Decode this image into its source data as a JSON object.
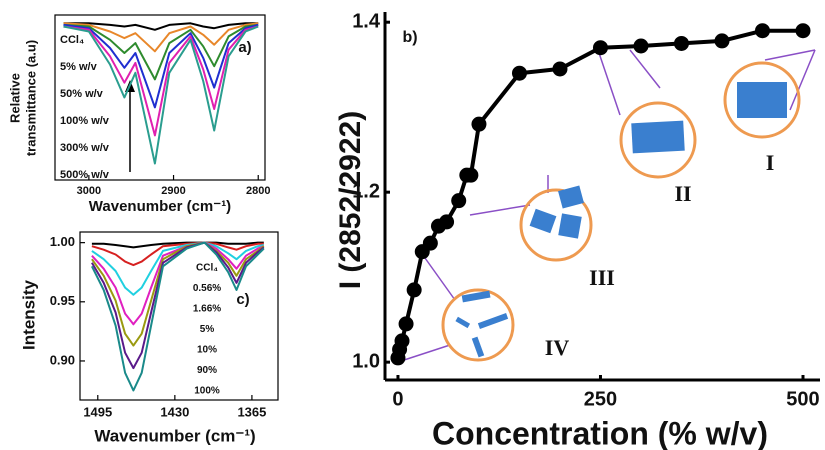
{
  "chart_data": [
    {
      "type": "line",
      "panel_label": "a)",
      "xlabel": "Wavenumber (cm⁻¹)",
      "ylabel": [
        "Relative",
        "transmittance (a.u)"
      ],
      "xlim": [
        3040,
        2792
      ],
      "ylim": [
        0,
        1
      ],
      "xticks": [
        3000,
        2900,
        2800
      ],
      "x": [
        3030,
        3000,
        2975,
        2958,
        2945,
        2922,
        2905,
        2880,
        2865,
        2852,
        2835,
        2815,
        2800
      ],
      "series": [
        {
          "name": "CCl₄",
          "color": "#000000",
          "values": [
            0.95,
            0.95,
            0.94,
            0.93,
            0.94,
            0.91,
            0.94,
            0.95,
            0.93,
            0.92,
            0.94,
            0.95,
            0.95
          ]
        },
        {
          "name": "5% w/v",
          "color": "#e8872a",
          "values": [
            0.95,
            0.94,
            0.9,
            0.86,
            0.89,
            0.78,
            0.89,
            0.93,
            0.88,
            0.82,
            0.91,
            0.94,
            0.95
          ]
        },
        {
          "name": "50% w/v",
          "color": "#2e8b2e",
          "values": [
            0.94,
            0.93,
            0.85,
            0.77,
            0.83,
            0.61,
            0.83,
            0.91,
            0.81,
            0.69,
            0.87,
            0.93,
            0.94
          ]
        },
        {
          "name": "100% w/v",
          "color": "#1f2fd0",
          "values": [
            0.94,
            0.92,
            0.8,
            0.68,
            0.77,
            0.44,
            0.77,
            0.89,
            0.74,
            0.56,
            0.83,
            0.92,
            0.94
          ]
        },
        {
          "name": "300% w/v",
          "color": "#e020b0",
          "values": [
            0.93,
            0.91,
            0.75,
            0.59,
            0.71,
            0.27,
            0.71,
            0.87,
            0.67,
            0.43,
            0.79,
            0.91,
            0.93
          ]
        },
        {
          "name": "500% w/v",
          "color": "#2a9d8f",
          "values": [
            0.93,
            0.9,
            0.7,
            0.5,
            0.65,
            0.1,
            0.65,
            0.85,
            0.6,
            0.3,
            0.75,
            0.9,
            0.93
          ]
        }
      ]
    },
    {
      "type": "line",
      "markers": true,
      "panel_label": "b)",
      "xlabel": "Concentration (% w/v)",
      "ylabel": "I (2852/2922)",
      "xlim": [
        -16,
        521
      ],
      "ylim": [
        0.979,
        1.412
      ],
      "xticks": [
        0,
        250,
        500
      ],
      "yticks": [
        {
          "value": 1.0,
          "label": "1.0"
        },
        {
          "value": 1.2,
          "label": "1.2"
        },
        {
          "value": 1.4,
          "label": "1.4"
        }
      ],
      "color": "#000000",
      "x": [
        0,
        2,
        5,
        10,
        20,
        30,
        40,
        50,
        60,
        75,
        85,
        90,
        100,
        150,
        200,
        250,
        300,
        350,
        400,
        450,
        500
      ],
      "values": [
        1.005,
        1.015,
        1.025,
        1.045,
        1.085,
        1.13,
        1.14,
        1.16,
        1.165,
        1.19,
        1.22,
        1.22,
        1.28,
        1.34,
        1.345,
        1.37,
        1.372,
        1.375,
        1.378,
        1.39,
        1.39
      ],
      "stages": [
        "I",
        "II",
        "III",
        "IV"
      ]
    },
    {
      "type": "line",
      "panel_label": "c)",
      "xlabel": "Wavenumber (cm⁻¹)",
      "ylabel": "Intensity",
      "xlim": [
        1510,
        1343
      ],
      "ylim": [
        0.867,
        1.009
      ],
      "xticks": [
        1495,
        1430,
        1365
      ],
      "yticks": [
        {
          "value": 1.0,
          "label": "1.00"
        },
        {
          "value": 0.95,
          "label": "0.95"
        },
        {
          "value": 0.9,
          "label": "0.90"
        }
      ],
      "x": [
        1500,
        1490,
        1480,
        1472,
        1465,
        1458,
        1450,
        1440,
        1420,
        1405,
        1395,
        1385,
        1378,
        1370,
        1360,
        1355
      ],
      "series": [
        {
          "name": "CCl₄",
          "color": "#000000",
          "values": [
            0.999,
            0.999,
            0.998,
            0.997,
            0.996,
            0.997,
            0.998,
            0.999,
            1,
            1,
            1,
            0.999,
            0.999,
            0.999,
            1,
            1
          ]
        },
        {
          "name": "0.56%",
          "color": "#d62020",
          "values": [
            0.997,
            0.994,
            0.99,
            0.984,
            0.981,
            0.984,
            0.99,
            0.997,
            0.999,
            1,
            0.999,
            0.996,
            0.994,
            0.997,
            0.999,
            0.999
          ]
        },
        {
          "name": "1.66%",
          "color": "#20d0e0",
          "values": [
            0.993,
            0.986,
            0.976,
            0.962,
            0.956,
            0.962,
            0.976,
            0.993,
            0.998,
            1,
            0.997,
            0.991,
            0.986,
            0.993,
            0.997,
            0.998
          ]
        },
        {
          "name": "5%",
          "color": "#e020c0",
          "values": [
            0.989,
            0.978,
            0.962,
            0.94,
            0.931,
            0.94,
            0.962,
            0.989,
            0.997,
            1,
            0.995,
            0.986,
            0.978,
            0.989,
            0.995,
            0.997
          ]
        },
        {
          "name": "10%",
          "color": "#9a9a10",
          "values": [
            0.986,
            0.972,
            0.951,
            0.923,
            0.913,
            0.923,
            0.951,
            0.986,
            0.997,
            1,
            0.993,
            0.983,
            0.972,
            0.986,
            0.993,
            0.997
          ]
        },
        {
          "name": "90%",
          "color": "#5a1a8a",
          "values": [
            0.983,
            0.966,
            0.941,
            0.907,
            0.894,
            0.907,
            0.941,
            0.983,
            0.996,
            1,
            0.992,
            0.979,
            0.966,
            0.983,
            0.992,
            0.996
          ]
        },
        {
          "name": "100%",
          "color": "#1a8a8a",
          "values": [
            0.98,
            0.96,
            0.93,
            0.89,
            0.875,
            0.89,
            0.93,
            0.98,
            0.995,
            1,
            0.99,
            0.975,
            0.96,
            0.98,
            0.99,
            0.995
          ]
        }
      ]
    }
  ]
}
